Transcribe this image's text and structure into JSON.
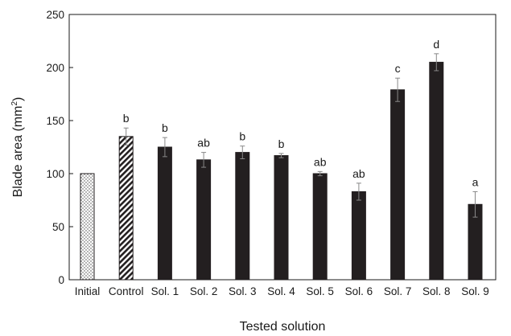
{
  "chart_data": {
    "type": "bar",
    "xlabel": "Tested solution",
    "ylabel": "Blade area (mm",
    "ylabel_superscript": "2",
    "ylabel_close": ")",
    "ylim": [
      0,
      250
    ],
    "yticks": [
      0,
      50,
      100,
      150,
      200,
      250
    ],
    "categories": [
      "Initial",
      "Control",
      "Sol. 1",
      "Sol. 2",
      "Sol. 3",
      "Sol. 4",
      "Sol. 5",
      "Sol. 6",
      "Sol. 7",
      "Sol. 8",
      "Sol. 9"
    ],
    "values": [
      100,
      135,
      125,
      113,
      120,
      117,
      100,
      83,
      179,
      205,
      71
    ],
    "errors": [
      0,
      8,
      9,
      7,
      6,
      2,
      2,
      8,
      11,
      8,
      12
    ],
    "significance": [
      "",
      "b",
      "b",
      "ab",
      "b",
      "b",
      "ab",
      "ab",
      "c",
      "d",
      "a"
    ],
    "bar_styles": [
      "dotted",
      "hatched",
      "solid",
      "solid",
      "solid",
      "solid",
      "solid",
      "solid",
      "solid",
      "solid",
      "solid"
    ],
    "bar_color": "#231f20",
    "grid": false,
    "legend": false
  }
}
